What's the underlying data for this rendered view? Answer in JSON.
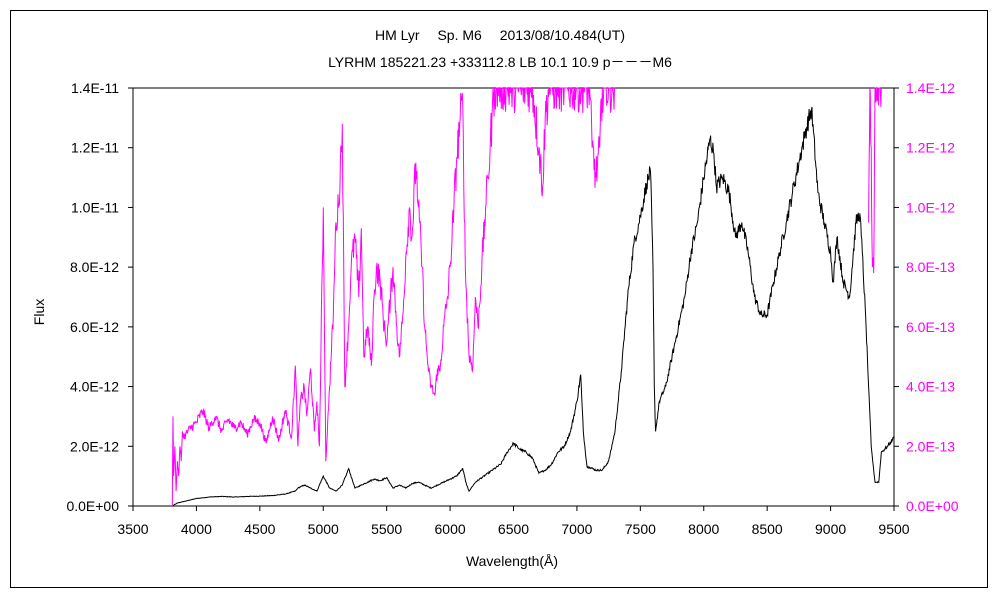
{
  "chart_data": {
    "type": "line",
    "title": "HM Lyr　 Sp. M6　 2013/08/10.484(UT)",
    "subtitle": "LYRHM 185221.23 +333112.8 LB 10.1 10.9 p－－－M6",
    "xlabel": "Wavelength(Å)",
    "ylabel": "Flux",
    "xlim": [
      3500,
      9500
    ],
    "ylim_left": [
      0,
      1.4e-11
    ],
    "ylim_right": [
      0,
      1.4e-12
    ],
    "x_ticks": [
      "3500",
      "4000",
      "4500",
      "5000",
      "5500",
      "6000",
      "6500",
      "7000",
      "7500",
      "8000",
      "8500",
      "9000",
      "9500"
    ],
    "y_ticks_left": [
      "0.0E+00",
      "2.0E-12",
      "4.0E-12",
      "6.0E-12",
      "8.0E-12",
      "1.0E-11",
      "1.2E-11",
      "1.4E-11"
    ],
    "y_ticks_right": [
      "0.0E+00",
      "2.0E-13",
      "4.0E-13",
      "6.0E-13",
      "8.0E-13",
      "1.0E-12",
      "1.2E-12",
      "1.4E-12"
    ],
    "colors": {
      "left_series": "#000000",
      "right_series": "#ff00ff",
      "right_axis": "#ff00ff"
    },
    "series": [
      {
        "axis": "left",
        "x": [
          3810,
          3850,
          3900,
          3950,
          4000,
          4100,
          4200,
          4300,
          4400,
          4500,
          4600,
          4700,
          4780,
          4800,
          4850,
          4900,
          4950,
          5000,
          5050,
          5100,
          5150,
          5200,
          5250,
          5300,
          5350,
          5400,
          5450,
          5500,
          5550,
          5600,
          5650,
          5700,
          5750,
          5800,
          5850,
          5900,
          5950,
          6000,
          6050,
          6100,
          6130,
          6150,
          6200,
          6300,
          6400,
          6450,
          6500,
          6550,
          6600,
          6650,
          6700,
          6750,
          6800,
          6850,
          6900,
          6950,
          7000,
          7030,
          7050,
          7080,
          7100,
          7150,
          7200,
          7250,
          7300,
          7350,
          7400,
          7450,
          7500,
          7550,
          7580,
          7600,
          7610,
          7620,
          7650,
          7700,
          7750,
          7800,
          7850,
          7900,
          7950,
          8000,
          8050,
          8080,
          8100,
          8150,
          8200,
          8250,
          8300,
          8350,
          8400,
          8450,
          8500,
          8550,
          8600,
          8650,
          8700,
          8750,
          8800,
          8850,
          8900,
          8950,
          9000,
          9020,
          9050,
          9100,
          9150,
          9200,
          9230,
          9250,
          9280,
          9300,
          9320,
          9350,
          9380,
          9400,
          9450,
          9500
        ],
        "y": [
          0.0,
          1e-13,
          1.5e-13,
          2e-13,
          2.5e-13,
          3e-13,
          3.2e-13,
          3e-13,
          3.2e-13,
          3.3e-13,
          3.5e-13,
          4e-13,
          5e-13,
          6e-13,
          7e-13,
          6e-13,
          5e-13,
          1e-12,
          6e-13,
          5e-13,
          7e-13,
          1.25e-12,
          6e-13,
          7e-13,
          8e-13,
          9e-13,
          8.5e-13,
          9.5e-13,
          6e-13,
          7e-13,
          6e-13,
          7.5e-13,
          8e-13,
          7e-13,
          6e-13,
          7e-13,
          8e-13,
          9e-13,
          1e-12,
          1.25e-12,
          7e-13,
          5e-13,
          8e-13,
          1.1e-12,
          1.4e-12,
          1.8e-12,
          2.1e-12,
          1.9e-12,
          1.8e-12,
          1.6e-12,
          1.1e-12,
          1.2e-12,
          1.4e-12,
          1.8e-12,
          2e-12,
          2.5e-12,
          3.5e-12,
          4.4e-12,
          2.5e-12,
          1.3e-12,
          1.3e-12,
          1.2e-12,
          1.2e-12,
          1.5e-12,
          2.5e-12,
          4.5e-12,
          7e-12,
          8.8e-12,
          9.7e-12,
          1.08e-11,
          1.12e-11,
          8e-12,
          4e-12,
          2.5e-12,
          3.5e-12,
          4e-12,
          5e-12,
          6e-12,
          7e-12,
          8.5e-12,
          9.5e-12,
          1.1e-11,
          1.23e-11,
          1.18e-11,
          1.07e-11,
          1.1e-11,
          1.05e-11,
          9e-12,
          9.5e-12,
          8.5e-12,
          7e-12,
          6.4e-12,
          6.4e-12,
          7.5e-12,
          8.5e-12,
          9.5e-12,
          1.05e-11,
          1.15e-11,
          1.25e-11,
          1.33e-11,
          1.05e-11,
          9.5e-12,
          8.5e-12,
          7.5e-12,
          9e-12,
          7.5e-12,
          7e-12,
          9.5e-12,
          9.8e-12,
          8.5e-12,
          6e-12,
          4e-12,
          2e-12,
          8e-13,
          8e-13,
          1.8e-12,
          2e-12,
          2.3e-12
        ]
      },
      {
        "axis": "right",
        "x": [
          3810,
          3815,
          3820,
          3830,
          3840,
          3850,
          3860,
          3870,
          3880,
          3890,
          3900,
          3950,
          4000,
          4050,
          4100,
          4150,
          4200,
          4250,
          4300,
          4350,
          4400,
          4450,
          4500,
          4550,
          4600,
          4650,
          4700,
          4750,
          4780,
          4800,
          4820,
          4850,
          4870,
          4900,
          4930,
          4950,
          4970,
          5000,
          5020,
          5050,
          5080,
          5100,
          5120,
          5150,
          5170,
          5200,
          5220,
          5250,
          5280,
          5300,
          5320,
          5350,
          5380,
          5400,
          5420,
          5450,
          5480,
          5500,
          5530,
          5550,
          5580,
          5600,
          5630,
          5650,
          5680,
          5700,
          5730,
          5750,
          5780,
          5800,
          5830,
          5850,
          5880,
          5900,
          5920,
          5950,
          5980,
          6000,
          6030,
          6050,
          6080,
          6100,
          6120,
          6150,
          6180,
          6200,
          6220,
          6250,
          6280,
          6300,
          6330,
          6350,
          6380,
          6400,
          6430,
          6450,
          6500,
          6550,
          6600,
          6650,
          6700,
          6730,
          6750,
          6780,
          6800,
          6850,
          6900,
          6950,
          7000,
          7050,
          7100,
          7120,
          7150,
          7180,
          7200,
          7220,
          7250,
          7300
        ],
        "y": [
          0.0,
          3e-13,
          1e-13,
          2e-13,
          5e-14,
          1.5e-13,
          1e-13,
          2e-13,
          1.5e-13,
          2.5e-13,
          2.3e-13,
          2.6e-13,
          2.8e-13,
          3.2e-13,
          2.6e-13,
          3e-13,
          2.5e-13,
          2.9e-13,
          2.6e-13,
          2.8e-13,
          2.4e-13,
          2.9e-13,
          2.8e-13,
          2.1e-13,
          3e-13,
          2.2e-13,
          3.2e-13,
          2.3e-13,
          4.7e-13,
          2e-13,
          3.5e-13,
          4e-13,
          3e-13,
          4.6e-13,
          2.5e-13,
          3.5e-13,
          2e-13,
          1e-12,
          1.5e-13,
          4e-13,
          6.5e-13,
          9.5e-13,
          1e-12,
          1.28e-12,
          4e-13,
          6e-13,
          8e-13,
          9e-13,
          7e-13,
          9.3e-13,
          5e-13,
          6e-13,
          4.7e-13,
          7e-13,
          8e-13,
          7.5e-13,
          6e-13,
          5.5e-13,
          7e-13,
          8e-13,
          6e-13,
          5e-13,
          6.5e-13,
          8.3e-13,
          1e-12,
          9e-13,
          1.15e-12,
          1e-12,
          8e-13,
          6e-13,
          4.5e-13,
          4e-13,
          3.7e-13,
          4.6e-13,
          4.5e-13,
          6e-13,
          7e-13,
          8e-13,
          1e-12,
          1.15e-12,
          1.3e-12,
          1.34e-12,
          8e-13,
          5e-13,
          4.7e-13,
          7e-13,
          6e-13,
          8e-13,
          1e-12,
          1.1e-12,
          1.3e-12,
          1.4e-12,
          1.4e-12,
          1.4e-12,
          1.4e-12,
          1.4e-12,
          1.4e-12,
          1.4e-12,
          1.4e-12,
          1.4e-12,
          1.2e-12,
          1.07e-12,
          1.3e-12,
          1.4e-12,
          1.4e-12,
          1.4e-12,
          1.4e-12,
          1.4e-12,
          1.4e-12,
          1.4e-12,
          1.4e-12,
          1.2e-12,
          1.1e-12,
          1.2e-12,
          1.4e-12,
          1.4e-12,
          1.4e-12,
          1.4e-12
        ]
      },
      {
        "axis": "right",
        "x": [
          9300,
          9310,
          9320,
          9330,
          9340,
          9350,
          9360,
          9370,
          9380,
          9390,
          9400
        ],
        "y": [
          9.5e-13,
          1.4e-12,
          1.2e-12,
          8e-13,
          7.8e-13,
          1.4e-12,
          1.4e-12,
          1.4e-12,
          1.4e-12,
          1.4e-12,
          1.4e-12
        ]
      }
    ]
  }
}
